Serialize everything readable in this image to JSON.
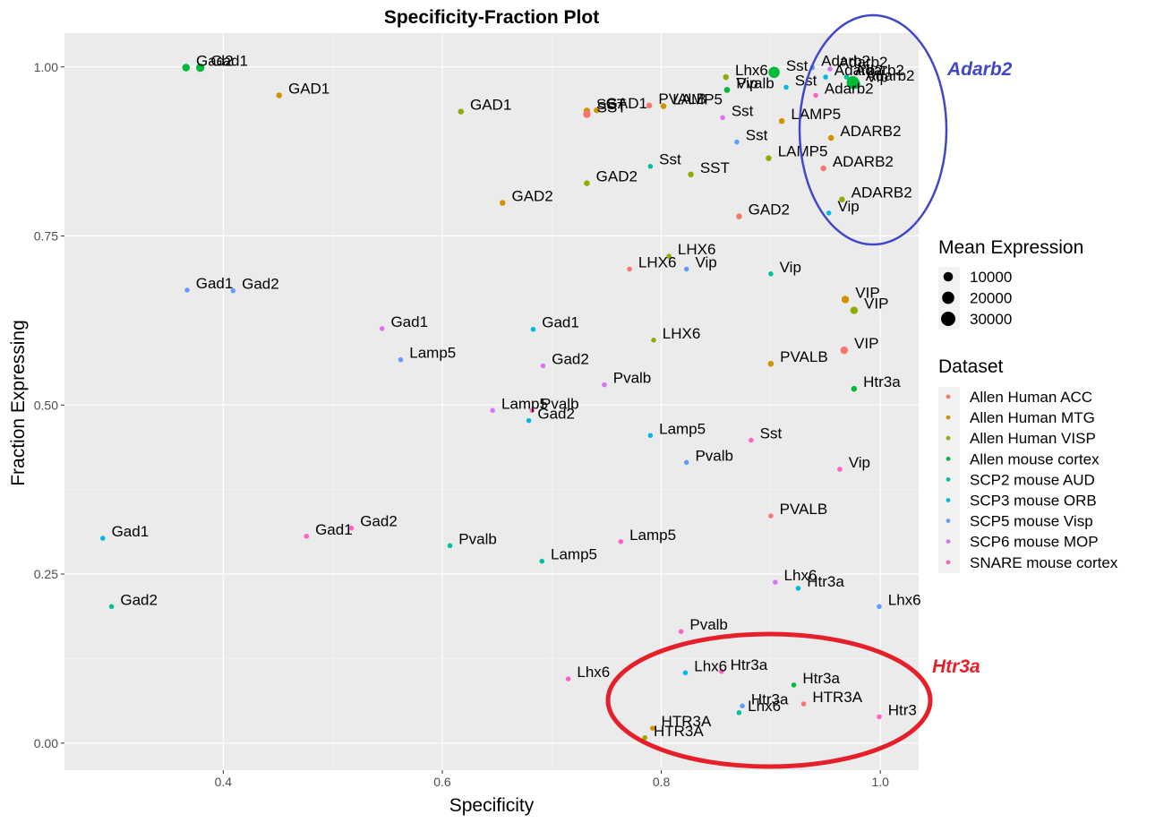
{
  "chart_data": {
    "type": "scatter",
    "title": "Specificity-Fraction Plot",
    "xlabel": "Specificity",
    "ylabel": "Fraction Expressing",
    "xlim": [
      0.255,
      1.035
    ],
    "ylim": [
      -0.04,
      1.05
    ],
    "x_ticks": [
      0.4,
      0.6,
      0.8,
      1.0
    ],
    "x_tick_labels": [
      "0.4",
      "0.6",
      "0.8",
      "1.0"
    ],
    "y_ticks": [
      0.0,
      0.25,
      0.5,
      0.75,
      1.0
    ],
    "y_tick_labels": [
      "0.00",
      "0.25",
      "0.50",
      "0.75",
      "1.00"
    ],
    "grid": true,
    "background": "#ebebeb",
    "legend_position": "right",
    "size_legend": {
      "title": "Mean Expression",
      "entries": [
        "10000",
        "20000",
        "30000"
      ]
    },
    "color_legend": {
      "title": "Dataset",
      "entries": [
        {
          "name": "Allen Human ACC",
          "color": "#f8766d"
        },
        {
          "name": "Allen Human MTG",
          "color": "#d39200"
        },
        {
          "name": "Allen Human VISP",
          "color": "#93aa00"
        },
        {
          "name": "Allen mouse cortex",
          "color": "#00ba38"
        },
        {
          "name": "SCP2 mouse AUD",
          "color": "#00c19f"
        },
        {
          "name": "SCP3 mouse ORB",
          "color": "#00b9e3"
        },
        {
          "name": "SCP5 mouse Visp",
          "color": "#619cff"
        },
        {
          "name": "SCP6 mouse MOP",
          "color": "#db72fb"
        },
        {
          "name": "SNARE mouse cortex",
          "color": "#ff61c3"
        }
      ]
    },
    "points": [
      {
        "label": "Gad1",
        "x": 0.379,
        "y": 0.999,
        "ds": 3,
        "size": 7000
      },
      {
        "label": "Gad2",
        "x": 0.366,
        "y": 0.999,
        "ds": 3,
        "size": 5000
      },
      {
        "label": "GAD1",
        "x": 0.451,
        "y": 0.958,
        "ds": 1,
        "size": 2000
      },
      {
        "label": "GAD1",
        "x": 0.617,
        "y": 0.934,
        "ds": 2,
        "size": 2000
      },
      {
        "label": "GAD1",
        "x": 0.741,
        "y": 0.936,
        "ds": 1,
        "size": 2000
      },
      {
        "label": "SST",
        "x": 0.732,
        "y": 0.935,
        "ds": 1,
        "size": 3000
      },
      {
        "label": "SST",
        "x": 0.732,
        "y": 0.93,
        "ds": 0,
        "size": 5000
      },
      {
        "label": "PVALB",
        "x": 0.789,
        "y": 0.943,
        "ds": 0,
        "size": 2000
      },
      {
        "label": "LAMP5",
        "x": 0.802,
        "y": 0.942,
        "ds": 1,
        "size": 2000
      },
      {
        "label": "Lhx6",
        "x": 0.859,
        "y": 0.985,
        "ds": 2,
        "size": 2000
      },
      {
        "label": "Sst",
        "x": 0.903,
        "y": 0.992,
        "ds": 3,
        "size": 16000
      },
      {
        "label": "Vip",
        "x": 0.86,
        "y": 0.966,
        "ds": 3,
        "size": 2000
      },
      {
        "label": "Pvalb",
        "x": 0.86,
        "y": 0.966,
        "ds": 3,
        "size": 2000
      },
      {
        "label": "Sst",
        "x": 0.914,
        "y": 0.97,
        "ds": 5,
        "size": 1000
      },
      {
        "label": "Sst",
        "x": 0.856,
        "y": 0.925,
        "ds": 7,
        "size": 1000
      },
      {
        "label": "LAMP5",
        "x": 0.91,
        "y": 0.92,
        "ds": 1,
        "size": 2000
      },
      {
        "label": "Sst",
        "x": 0.869,
        "y": 0.889,
        "ds": 6,
        "size": 1000
      },
      {
        "label": "LAMP5",
        "x": 0.898,
        "y": 0.865,
        "ds": 2,
        "size": 2000
      },
      {
        "label": "Sst",
        "x": 0.79,
        "y": 0.853,
        "ds": 4,
        "size": 1000
      },
      {
        "label": "SST",
        "x": 0.827,
        "y": 0.841,
        "ds": 2,
        "size": 2000
      },
      {
        "label": "GAD2",
        "x": 0.732,
        "y": 0.828,
        "ds": 2,
        "size": 2000
      },
      {
        "label": "GAD2",
        "x": 0.655,
        "y": 0.799,
        "ds": 1,
        "size": 2000
      },
      {
        "label": "GAD2",
        "x": 0.871,
        "y": 0.779,
        "ds": 0,
        "size": 2000
      },
      {
        "label": "Adarb2",
        "x": 0.938,
        "y": 0.999,
        "ds": 6,
        "size": 1000
      },
      {
        "label": "Adarb2",
        "x": 0.954,
        "y": 0.997,
        "ds": 7,
        "size": 1000
      },
      {
        "label": "Adarb2",
        "x": 0.969,
        "y": 0.985,
        "ds": 4,
        "size": 1000
      },
      {
        "label": "Adarb2",
        "x": 0.975,
        "y": 0.977,
        "ds": 3,
        "size": 22000
      },
      {
        "label": "Vip",
        "x": 0.977,
        "y": 0.975,
        "ds": 3,
        "size": 12000
      },
      {
        "label": "Adarb2",
        "x": 0.95,
        "y": 0.985,
        "ds": 5,
        "size": 1000
      },
      {
        "label": "Adarb2",
        "x": 0.941,
        "y": 0.958,
        "ds": 8,
        "size": 1000
      },
      {
        "label": "ADARB2",
        "x": 0.955,
        "y": 0.895,
        "ds": 1,
        "size": 2000
      },
      {
        "label": "ADARB2",
        "x": 0.948,
        "y": 0.85,
        "ds": 0,
        "size": 2000
      },
      {
        "label": "ADARB2",
        "x": 0.965,
        "y": 0.804,
        "ds": 2,
        "size": 2000
      },
      {
        "label": "Vip",
        "x": 0.953,
        "y": 0.784,
        "ds": 5,
        "size": 1000
      },
      {
        "label": "LHX6",
        "x": 0.807,
        "y": 0.72,
        "ds": 2,
        "size": 1000
      },
      {
        "label": "LHX6",
        "x": 0.771,
        "y": 0.701,
        "ds": 0,
        "size": 1000
      },
      {
        "label": "Vip",
        "x": 0.823,
        "y": 0.701,
        "ds": 6,
        "size": 1000
      },
      {
        "label": "Vip",
        "x": 0.9,
        "y": 0.694,
        "ds": 4,
        "size": 1000
      },
      {
        "label": "VIP",
        "x": 0.968,
        "y": 0.656,
        "ds": 1,
        "size": 5000
      },
      {
        "label": "VIP",
        "x": 0.976,
        "y": 0.64,
        "ds": 2,
        "size": 5000
      },
      {
        "label": "VIP",
        "x": 0.967,
        "y": 0.581,
        "ds": 0,
        "size": 5000
      },
      {
        "label": "PVALB",
        "x": 0.9,
        "y": 0.561,
        "ds": 1,
        "size": 2000
      },
      {
        "label": "Htr3a",
        "x": 0.976,
        "y": 0.524,
        "ds": 3,
        "size": 2000
      },
      {
        "label": "Gad1",
        "x": 0.367,
        "y": 0.67,
        "ds": 6,
        "size": 1000
      },
      {
        "label": "Gad2",
        "x": 0.409,
        "y": 0.669,
        "ds": 6,
        "size": 1000
      },
      {
        "label": "Gad1",
        "x": 0.545,
        "y": 0.613,
        "ds": 7,
        "size": 1000
      },
      {
        "label": "Gad1",
        "x": 0.683,
        "y": 0.612,
        "ds": 5,
        "size": 1000
      },
      {
        "label": "LHX6",
        "x": 0.793,
        "y": 0.596,
        "ds": 2,
        "size": 1000
      },
      {
        "label": "Lamp5",
        "x": 0.562,
        "y": 0.567,
        "ds": 6,
        "size": 1000
      },
      {
        "label": "Gad2",
        "x": 0.692,
        "y": 0.558,
        "ds": 7,
        "size": 1000
      },
      {
        "label": "Pvalb",
        "x": 0.748,
        "y": 0.53,
        "ds": 7,
        "size": 1000
      },
      {
        "label": "Lamp5",
        "x": 0.646,
        "y": 0.492,
        "ds": 7,
        "size": 1000
      },
      {
        "label": "Pvalb",
        "x": 0.682,
        "y": 0.492,
        "ds": 8,
        "size": 1000
      },
      {
        "label": "Gad2",
        "x": 0.679,
        "y": 0.477,
        "ds": 5,
        "size": 1000
      },
      {
        "label": "Lamp5",
        "x": 0.79,
        "y": 0.455,
        "ds": 5,
        "size": 1000
      },
      {
        "label": "Sst",
        "x": 0.882,
        "y": 0.448,
        "ds": 8,
        "size": 1000
      },
      {
        "label": "Pvalb",
        "x": 0.823,
        "y": 0.415,
        "ds": 6,
        "size": 1000
      },
      {
        "label": "Vip",
        "x": 0.963,
        "y": 0.405,
        "ds": 8,
        "size": 1000
      },
      {
        "label": "PVALB",
        "x": 0.9,
        "y": 0.336,
        "ds": 0,
        "size": 1000
      },
      {
        "label": "Gad1",
        "x": 0.29,
        "y": 0.303,
        "ds": 5,
        "size": 1000
      },
      {
        "label": "Gad1",
        "x": 0.476,
        "y": 0.306,
        "ds": 8,
        "size": 1000
      },
      {
        "label": "Gad2",
        "x": 0.517,
        "y": 0.318,
        "ds": 8,
        "size": 1000
      },
      {
        "label": "Pvalb",
        "x": 0.607,
        "y": 0.292,
        "ds": 4,
        "size": 1000
      },
      {
        "label": "Lamp5",
        "x": 0.763,
        "y": 0.298,
        "ds": 8,
        "size": 1000
      },
      {
        "label": "Lamp5",
        "x": 0.691,
        "y": 0.269,
        "ds": 4,
        "size": 1000
      },
      {
        "label": "Lhx6",
        "x": 0.904,
        "y": 0.238,
        "ds": 7,
        "size": 1000
      },
      {
        "label": "Htr3a",
        "x": 0.925,
        "y": 0.229,
        "ds": 5,
        "size": 1000
      },
      {
        "label": "Lhx6",
        "x": 0.999,
        "y": 0.202,
        "ds": 6,
        "size": 1000
      },
      {
        "label": "Gad2",
        "x": 0.298,
        "y": 0.202,
        "ds": 4,
        "size": 1000
      },
      {
        "label": "Pvalb",
        "x": 0.818,
        "y": 0.165,
        "ds": 8,
        "size": 1000
      },
      {
        "label": "Lhx6",
        "x": 0.715,
        "y": 0.095,
        "ds": 8,
        "size": 1000
      },
      {
        "label": "Lhx6",
        "x": 0.822,
        "y": 0.104,
        "ds": 5,
        "size": 1000
      },
      {
        "label": "Htr3a",
        "x": 0.855,
        "y": 0.106,
        "ds": 8,
        "size": 1000
      },
      {
        "label": "Htr3a",
        "x": 0.921,
        "y": 0.086,
        "ds": 3,
        "size": 1000
      },
      {
        "label": "Htr3a",
        "x": 0.874,
        "y": 0.055,
        "ds": 6,
        "size": 1000
      },
      {
        "label": "Lhx6",
        "x": 0.871,
        "y": 0.045,
        "ds": 4,
        "size": 1000
      },
      {
        "label": "HTR3A",
        "x": 0.93,
        "y": 0.058,
        "ds": 0,
        "size": 1000
      },
      {
        "label": "Htr3",
        "x": 0.999,
        "y": 0.039,
        "ds": 8,
        "size": 1000
      },
      {
        "label": "HTR3A",
        "x": 0.792,
        "y": 0.022,
        "ds": 1,
        "size": 1000
      },
      {
        "label": "HTR3A",
        "x": 0.785,
        "y": 0.008,
        "ds": 2,
        "size": 1000
      }
    ],
    "annotations": [
      {
        "text": "Adarb2",
        "color": "#4048c8"
      },
      {
        "text": "Htr3a",
        "color": "#e6202a"
      }
    ]
  }
}
